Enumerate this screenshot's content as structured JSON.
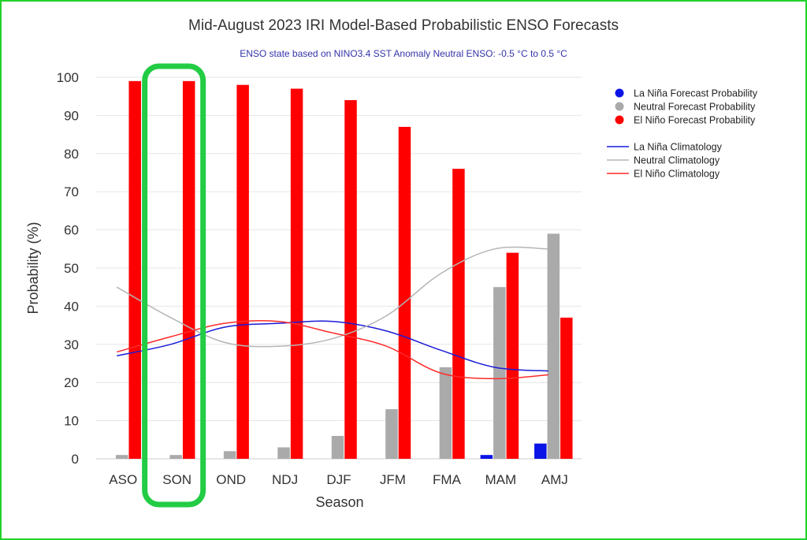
{
  "chart_data": {
    "type": "bar",
    "title": "Mid-August 2023 IRI Model-Based Probabilistic ENSO Forecasts",
    "subtitle": "ENSO state based on NINO3.4 SST Anomaly Neutral ENSO: -0.5 °C to 0.5 °C",
    "xlabel": "Season",
    "ylabel": "Probability (%)",
    "ylim": [
      0,
      100
    ],
    "yticks": [
      0,
      10,
      20,
      30,
      40,
      50,
      60,
      70,
      80,
      90,
      100
    ],
    "grid": true,
    "legend_position": "right",
    "categories": [
      "ASO",
      "SON",
      "OND",
      "NDJ",
      "DJF",
      "JFM",
      "FMA",
      "MAM",
      "AMJ"
    ],
    "highlighted_category": "SON",
    "highlight_color": "#22cc44",
    "series": [
      {
        "name": "La Niña Forecast Probability",
        "kind": "bar",
        "color": "#0a14e6",
        "values": [
          0,
          0,
          0,
          0,
          0,
          0,
          0,
          1,
          4
        ]
      },
      {
        "name": "Neutral Forecast Probability",
        "kind": "bar",
        "color": "#aaaaaa",
        "values": [
          1,
          1,
          2,
          3,
          6,
          13,
          24,
          45,
          59
        ]
      },
      {
        "name": "El Niño Forecast Probability",
        "kind": "bar",
        "color": "#ff0000",
        "values": [
          99,
          99,
          98,
          97,
          94,
          87,
          76,
          54,
          37
        ]
      },
      {
        "name": "La Niña Climatology",
        "kind": "line",
        "color": "#1a1ad8",
        "values": [
          27,
          30,
          34.5,
          35.5,
          36,
          33.5,
          28.5,
          24,
          23
        ]
      },
      {
        "name": "Neutral Climatology",
        "kind": "line",
        "color": "#b5b5b5",
        "values": [
          45,
          37,
          30.5,
          29.5,
          31.5,
          37.5,
          48.5,
          55,
          55
        ]
      },
      {
        "name": "El Niño Climatology",
        "kind": "line",
        "color": "#ff2a2a",
        "values": [
          28,
          32,
          35.5,
          36,
          33,
          29.5,
          22.5,
          21,
          22
        ]
      }
    ]
  }
}
